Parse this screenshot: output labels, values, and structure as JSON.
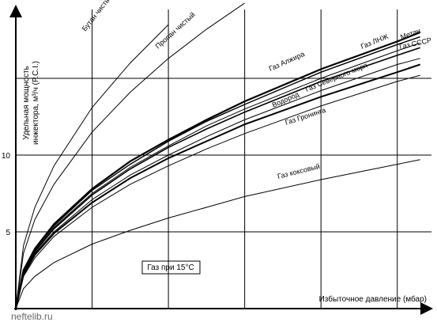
{
  "chart_data": {
    "type": "line",
    "x_label": "Избыточное давление (мбар)",
    "y_label": [
      "Удельная мощность",
      "инжектора, м³/ч (P.C.I.)"
    ],
    "annotation": "Газ при 15°С",
    "watermark": "neftelib.ru",
    "x": [
      0,
      0.1,
      0.25,
      0.5,
      1,
      1.5,
      2,
      2.5,
      3,
      4,
      5,
      5.3
    ],
    "xlim": [
      0,
      5.5
    ],
    "xgrid": [
      1,
      2,
      3,
      4,
      5
    ],
    "ylim": [
      0,
      20
    ],
    "yticks": [
      5,
      10
    ],
    "ygrid": [
      5,
      10,
      15
    ],
    "color": "#000000",
    "series": [
      {
        "name": "Бутан чистый",
        "values": [
          0,
          4.1,
          6.6,
          9.3,
          13.1,
          16,
          18.5,
          null,
          null,
          null,
          null,
          null
        ]
      },
      {
        "name": "Пропан чистый",
        "values": [
          0,
          3.6,
          5.8,
          8.1,
          11.5,
          14.1,
          16.3,
          18.2,
          19.9,
          null,
          null,
          null
        ]
      },
      {
        "name": "Газ ЛНЖ",
        "values": [
          0,
          2.5,
          3.9,
          5.5,
          7.8,
          9.6,
          11,
          12.3,
          13.5,
          15.6,
          17.4,
          18.0
        ]
      },
      {
        "name": "Метан",
        "values": [
          0,
          2.4,
          3.9,
          5.4,
          7.7,
          9.4,
          10.9,
          12.2,
          13.3,
          15.4,
          17.2,
          17.7
        ]
      },
      {
        "name": "Газ СССР",
        "values": [
          0,
          2.4,
          3.8,
          5.3,
          7.5,
          9.2,
          10.6,
          11.9,
          13,
          15,
          16.8,
          17.3
        ]
      },
      {
        "name": "Газ Алжира",
        "values": [
          0,
          2.3,
          3.7,
          5.2,
          7.4,
          9.1,
          10.5,
          11.7,
          12.8,
          14.8,
          16.5,
          17.0
        ]
      },
      {
        "name": "Газ Северного моря",
        "values": [
          0,
          2.2,
          3.6,
          5.0,
          7.1,
          8.7,
          10,
          11.2,
          12.3,
          14.2,
          15.9,
          16.3
        ]
      },
      {
        "name": "Водород",
        "values": [
          0,
          2.2,
          3.5,
          4.9,
          6.9,
          8.5,
          9.8,
          10.9,
          12,
          13.8,
          15.4,
          15.9
        ]
      },
      {
        "name": "Газ Гронинга",
        "values": [
          0,
          2.1,
          3.3,
          4.7,
          6.6,
          8.1,
          9.3,
          10.4,
          11.4,
          13.2,
          14.8,
          15.2
        ]
      },
      {
        "name": "Газ коксовый",
        "values": [
          0,
          1.3,
          2.1,
          3,
          4.2,
          5.1,
          5.9,
          6.6,
          7.3,
          8.4,
          9.4,
          9.7
        ]
      }
    ]
  }
}
